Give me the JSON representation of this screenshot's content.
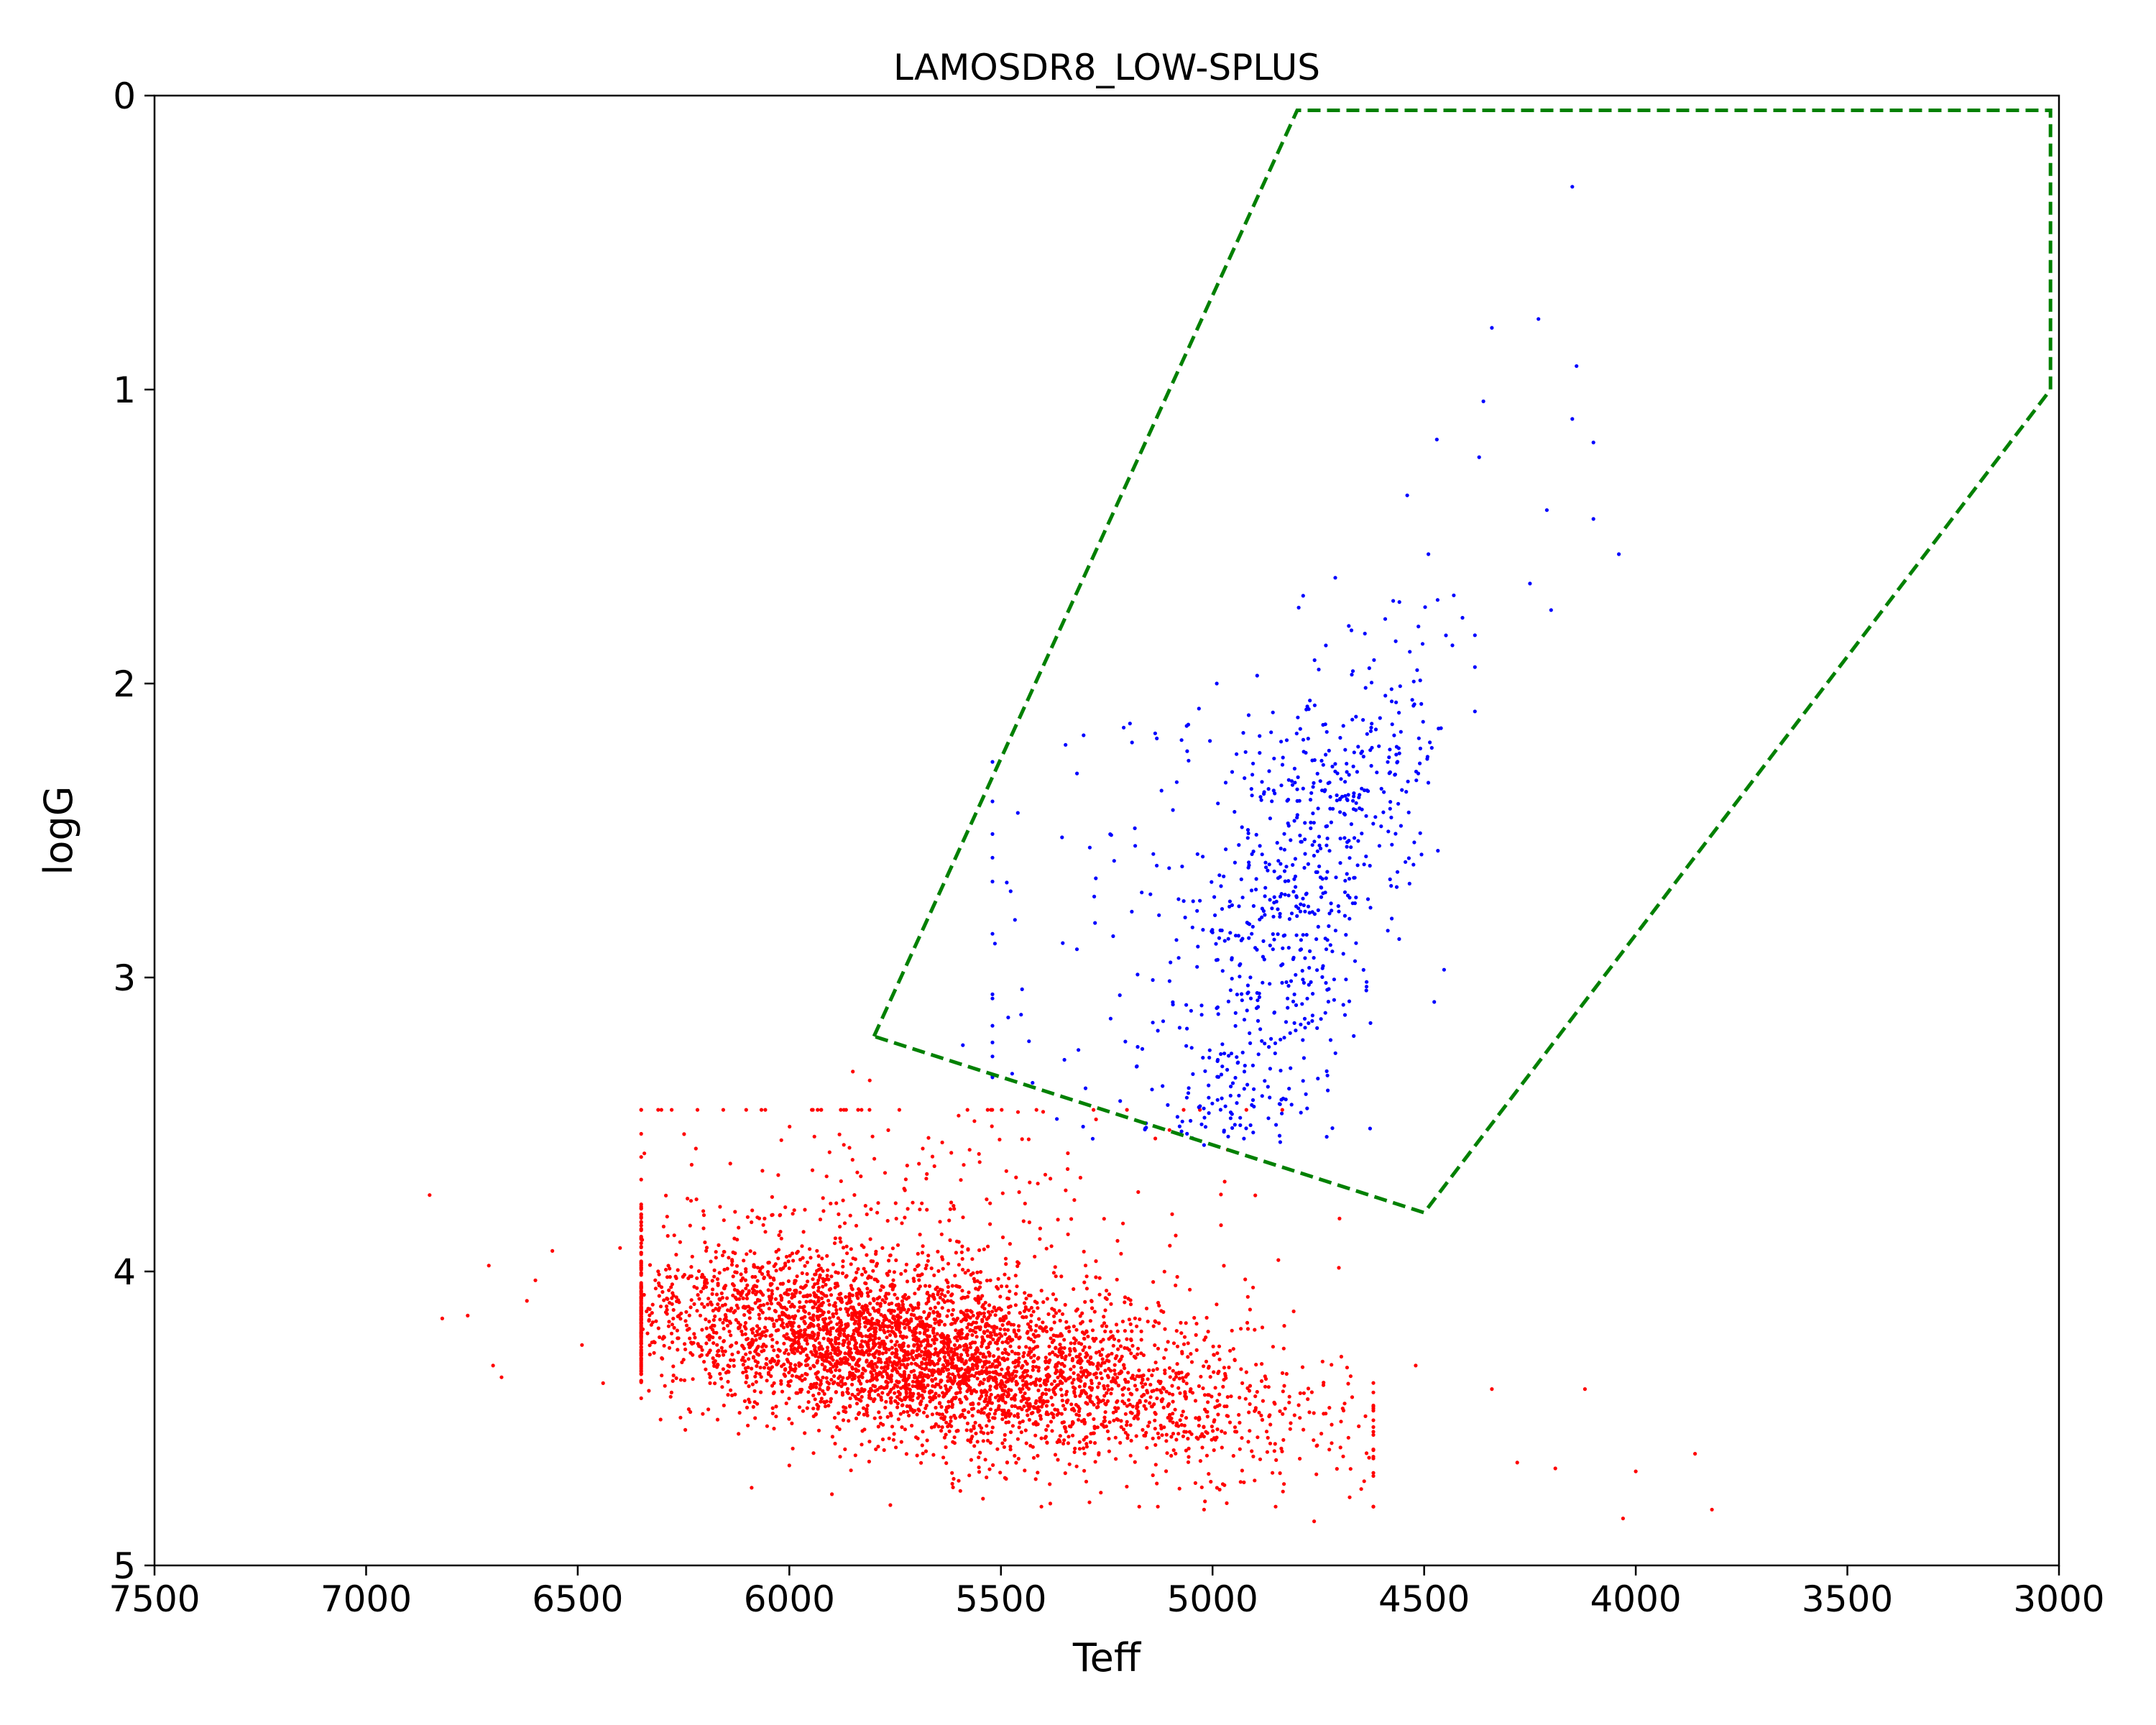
{
  "chart_data": {
    "type": "scatter",
    "title": "LAMOSDR8_LOW-SPLUS",
    "xlabel": "Teff",
    "ylabel": "logG",
    "xlim": [
      7500,
      3000
    ],
    "ylim": [
      5,
      0
    ],
    "x_reversed": true,
    "y_reversed": true,
    "xticks": [
      "7500",
      "7000",
      "6500",
      "6000",
      "5500",
      "5000",
      "4500",
      "4000",
      "3500",
      "3000"
    ],
    "yticks": [
      "0",
      "1",
      "2",
      "3",
      "4",
      "5"
    ],
    "grid": false,
    "legend": "none",
    "series": [
      {
        "color": "#ff0000",
        "generated_count": 4500,
        "values": [
          [
            6850,
            3.74
          ],
          [
            6820,
            4.16
          ],
          [
            6760,
            4.15
          ],
          [
            6710,
            3.98
          ],
          [
            6700,
            4.32
          ],
          [
            6680,
            4.36
          ],
          [
            6620,
            4.1
          ],
          [
            6600,
            4.03
          ],
          [
            6560,
            3.93
          ],
          [
            6490,
            4.25
          ],
          [
            6440,
            4.38
          ],
          [
            6400,
            3.92
          ],
          [
            5850,
            3.32
          ],
          [
            5810,
            3.35
          ],
          [
            5600,
            3.47
          ],
          [
            5450,
            3.55
          ],
          [
            4700,
            3.82
          ],
          [
            4520,
            4.32
          ],
          [
            4340,
            4.4
          ],
          [
            4280,
            4.65
          ],
          [
            4190,
            4.67
          ],
          [
            4120,
            4.4
          ],
          [
            4000,
            4.68
          ],
          [
            3860,
            4.62
          ],
          [
            3820,
            4.81
          ],
          [
            4030,
            4.84
          ],
          [
            4760,
            4.85
          ],
          [
            5020,
            4.81
          ],
          [
            6000,
            4.66
          ],
          [
            5880,
            4.63
          ]
        ]
      },
      {
        "color": "#0000ff",
        "generated_count": 800,
        "values": [
          [
            4150,
            0.31
          ],
          [
            4230,
            0.76
          ],
          [
            4340,
            0.79
          ],
          [
            4140,
            0.92
          ],
          [
            4360,
            1.04
          ],
          [
            4150,
            1.1
          ],
          [
            4100,
            1.18
          ],
          [
            4470,
            1.17
          ],
          [
            4370,
            1.23
          ],
          [
            4540,
            1.36
          ],
          [
            4210,
            1.41
          ],
          [
            4100,
            1.44
          ],
          [
            4040,
            1.56
          ],
          [
            4710,
            1.64
          ],
          [
            4490,
            1.56
          ],
          [
            4250,
            1.66
          ],
          [
            4200,
            1.75
          ],
          [
            4430,
            1.7
          ],
          [
            4640,
            1.83
          ],
          [
            4990,
            2.0
          ],
          [
            5210,
            2.15
          ],
          [
            5060,
            2.23
          ],
          [
            5350,
            3.28
          ],
          [
            5450,
            3.04
          ],
          [
            5590,
            3.23
          ],
          [
            5020,
            3.57
          ],
          [
            4840,
            3.56
          ],
          [
            5140,
            2.58
          ],
          [
            4560,
            2.22
          ],
          [
            4800,
            2.36
          ]
        ]
      }
    ],
    "annotations": [
      {
        "type": "polygon",
        "style": "dashed",
        "color": "#008000",
        "points": [
          [
            5800,
            3.2
          ],
          [
            4800,
            0.05
          ],
          [
            3020,
            0.05
          ],
          [
            3020,
            1.0
          ],
          [
            4500,
            3.8
          ],
          [
            5800,
            3.2
          ]
        ]
      }
    ]
  }
}
